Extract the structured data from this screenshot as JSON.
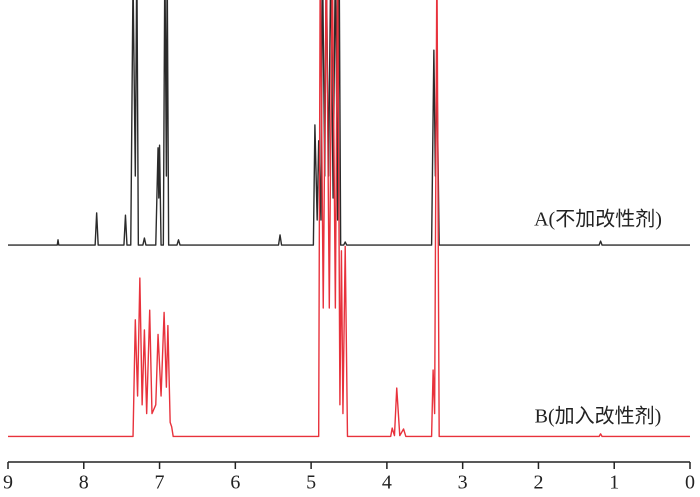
{
  "chart_data": {
    "type": "line",
    "annotations": [
      "A(不加改性剂)",
      "B(加入改性剂)"
    ],
    "xlim": [
      9,
      0
    ],
    "xticks": [
      9,
      8,
      7,
      6,
      5,
      4,
      3,
      2,
      1,
      0
    ],
    "ylim": [
      0,
      100
    ],
    "series": [
      {
        "name": "A",
        "color": "#2b2b2b",
        "x": [
          9,
          8.35,
          8.34,
          8.33,
          7.85,
          7.83,
          7.81,
          7.47,
          7.45,
          7.43,
          7.38,
          7.35,
          7.32,
          7.3,
          7.28,
          7.22,
          7.2,
          7.18,
          7.05,
          7.02,
          7.01,
          7.0,
          6.98,
          6.95,
          6.93,
          6.91,
          6.9,
          6.88,
          6.77,
          6.75,
          6.73,
          5.43,
          5.41,
          5.39,
          4.97,
          4.95,
          4.92,
          4.9,
          4.87,
          4.85,
          4.82,
          4.8,
          4.77,
          4.74,
          4.71,
          4.68,
          4.65,
          4.63,
          4.61,
          4.57,
          4.55,
          4.53,
          3.41,
          3.38,
          3.36,
          3.34,
          3.31,
          1.2,
          1.18,
          1.16,
          0
        ],
        "values": [
          44.3,
          44.3,
          45.5,
          44.3,
          44.3,
          51.6,
          44.3,
          44.3,
          51.1,
          44.3,
          44.3,
          105,
          60,
          110,
          44.3,
          44.3,
          45.9,
          44.3,
          44.3,
          66.4,
          55,
          67,
          44.3,
          44.3,
          110,
          60,
          110,
          44.3,
          44.3,
          45.5,
          44.3,
          44.3,
          46.6,
          44.3,
          44.3,
          71.6,
          50,
          68,
          50,
          110,
          60,
          110,
          60,
          110,
          55,
          110,
          50,
          110,
          44.3,
          44.3,
          45,
          44.3,
          44.3,
          88.6,
          60,
          84,
          44.3,
          44.3,
          45.2,
          44.3,
          44.3
        ]
      },
      {
        "name": "B",
        "color": "#e8323c",
        "x": [
          9,
          7.35,
          7.32,
          7.29,
          7.26,
          7.23,
          7.2,
          7.17,
          7.13,
          7.1,
          7.05,
          7.02,
          6.98,
          6.94,
          6.91,
          6.89,
          6.86,
          6.84,
          6.82,
          4.9,
          4.88,
          4.84,
          4.8,
          4.76,
          4.72,
          4.68,
          4.65,
          4.62,
          4.6,
          4.58,
          4.55,
          4.52,
          3.95,
          3.93,
          3.9,
          3.87,
          3.83,
          3.78,
          3.75,
          3.41,
          3.39,
          3.37,
          3.34,
          3.31,
          1.2,
          1.18,
          1.16,
          0
        ],
        "values": [
          0.8,
          0.8,
          27.3,
          10,
          36.8,
          8,
          25,
          6,
          29.5,
          6,
          8,
          24,
          10,
          29,
          12,
          26,
          4,
          3,
          0.8,
          0.8,
          110,
          30,
          110,
          30,
          110,
          30,
          110,
          8,
          43,
          6,
          44,
          0.8,
          0.8,
          2.7,
          1,
          11.8,
          1,
          2.5,
          0.8,
          0.8,
          15.9,
          6,
          110,
          0.8,
          0.8,
          1.4,
          0.8,
          0.8
        ]
      }
    ]
  }
}
